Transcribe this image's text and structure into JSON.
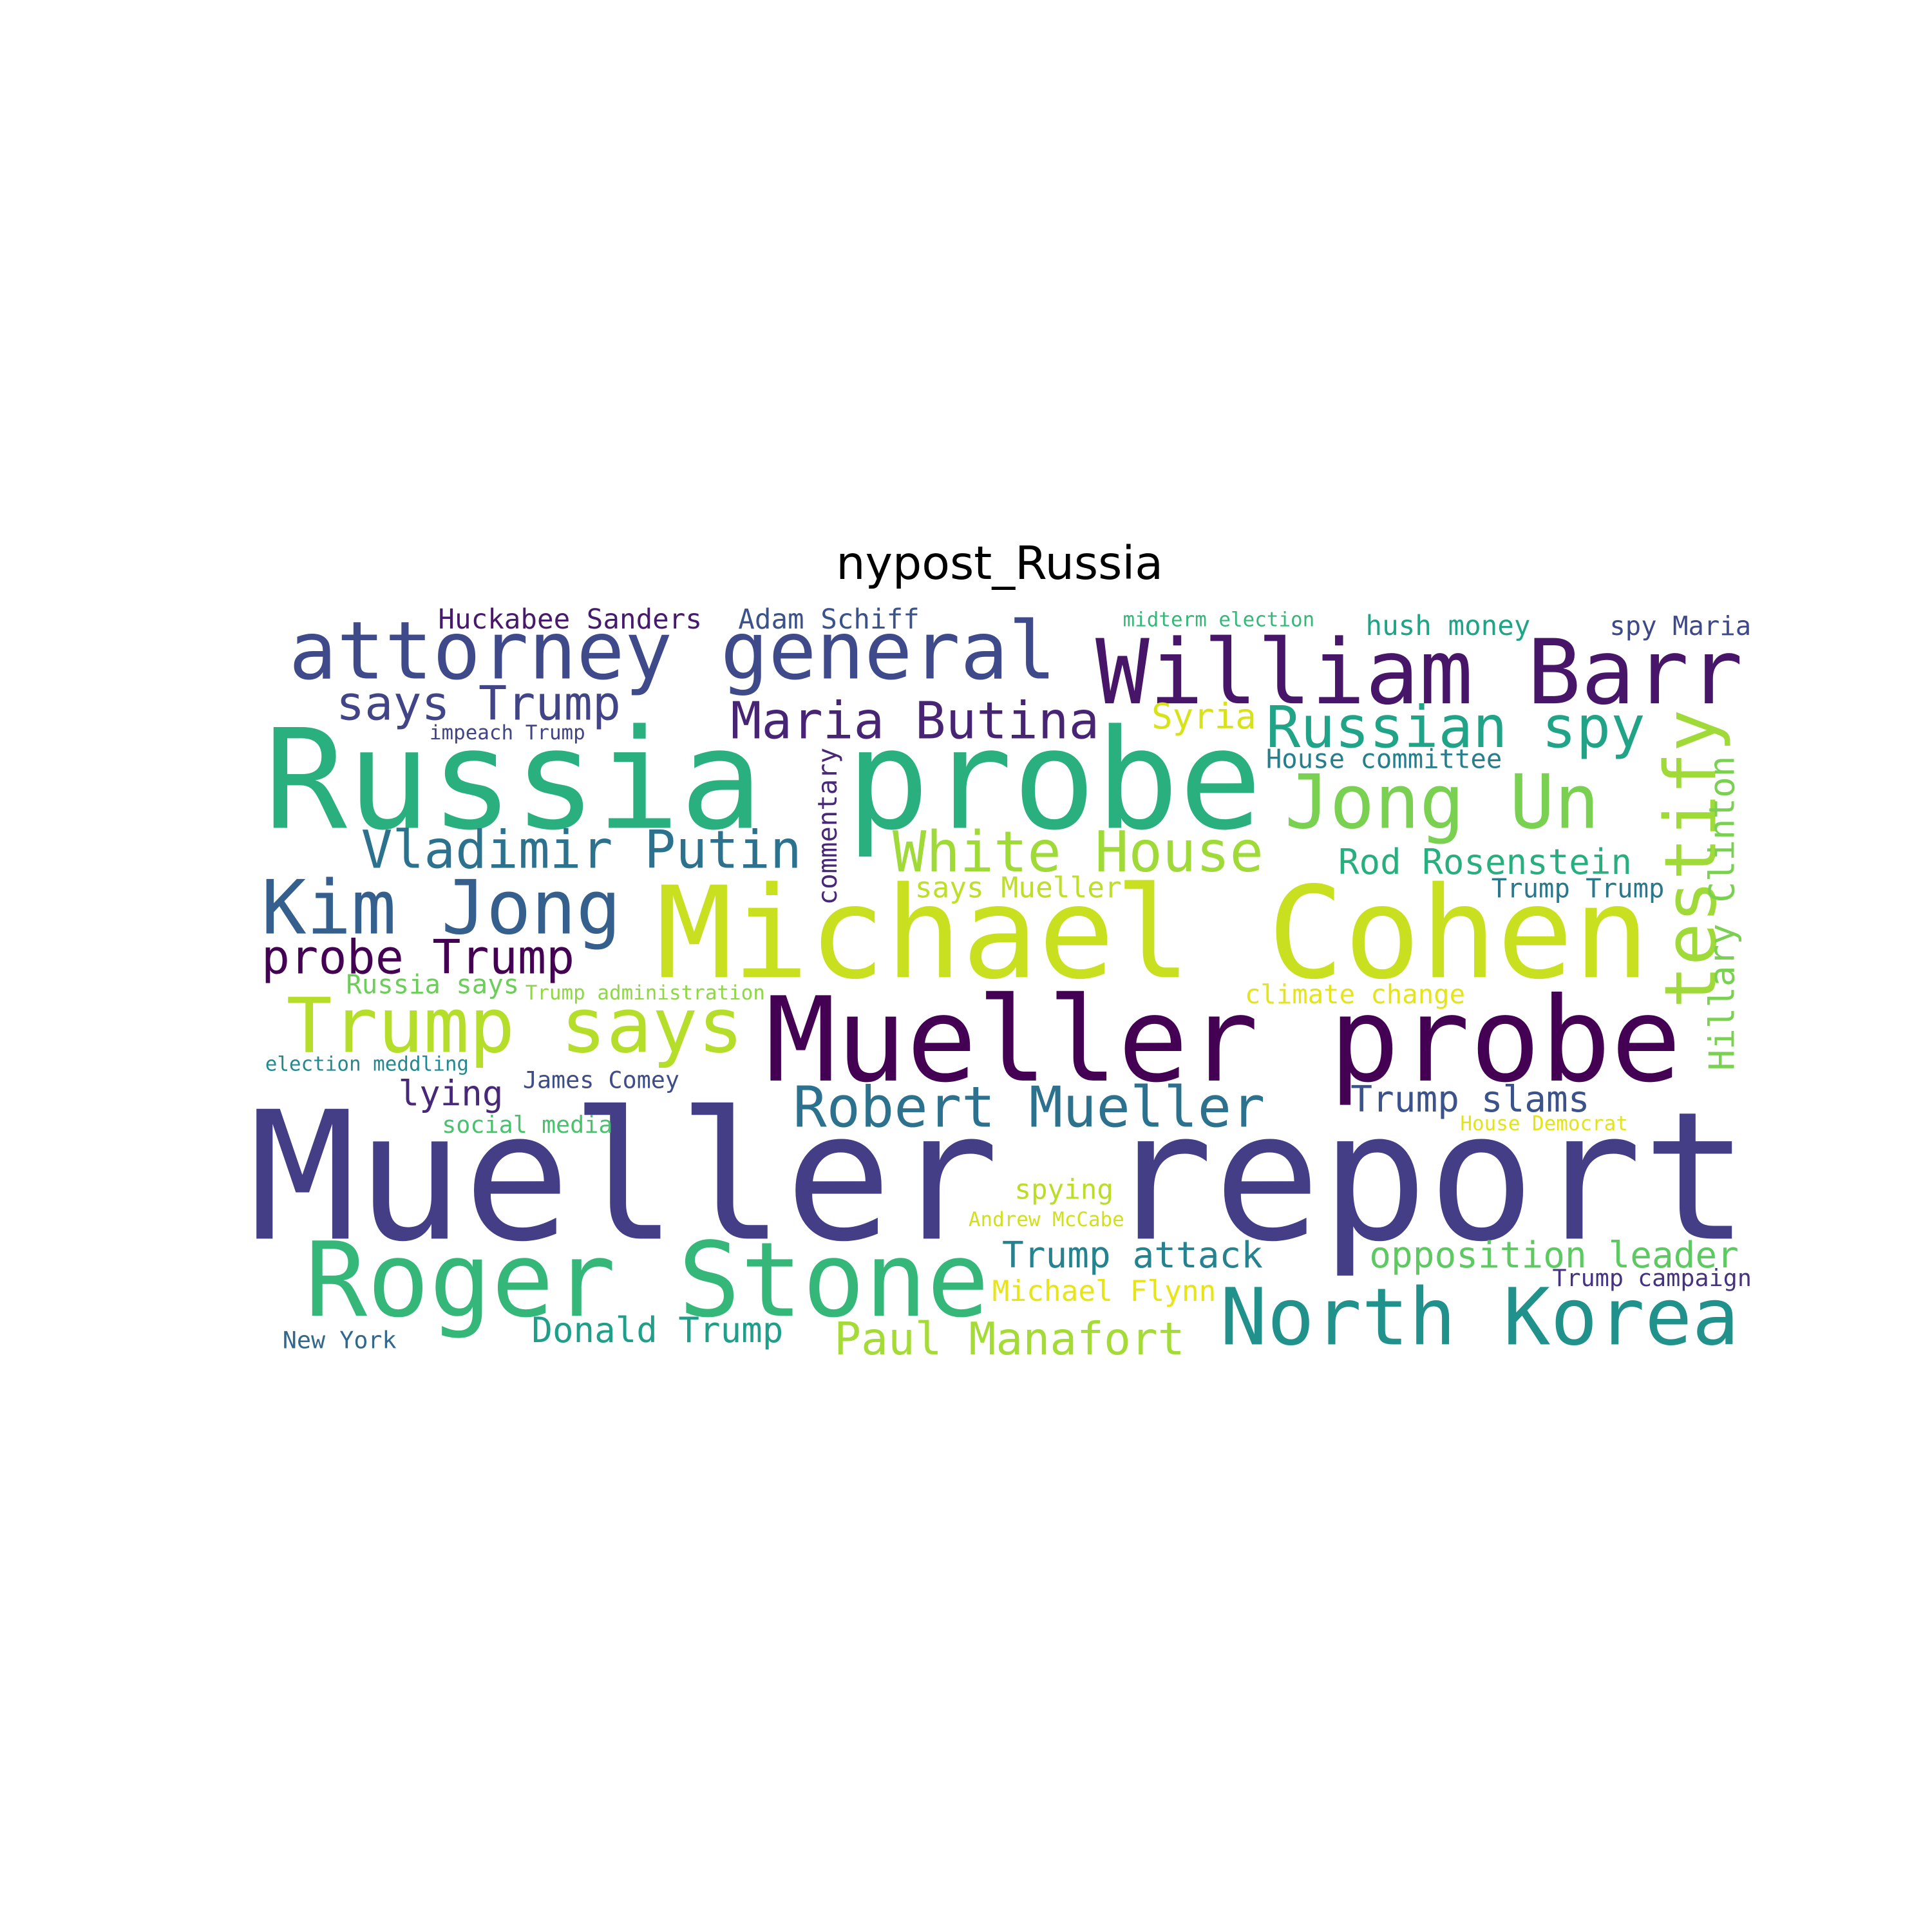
{
  "title": "nypost_Russia",
  "words": [
    "Mueller report",
    "Michael Cohen",
    "Russia probe",
    "Mueller probe",
    "William Barr",
    "attorney general",
    "Roger Stone",
    "North Korea",
    "Kim Jong",
    "Trump says",
    "Jong Un",
    "testify",
    "Hillary Clinton",
    "commentary",
    "Vladimir Putin",
    "White House",
    "Russian spy",
    "Maria Butina",
    "says Trump",
    "probe Trump",
    "Robert Mueller",
    "Paul Manafort",
    "Trump attack",
    "opposition leader",
    "Donald Trump",
    "Rod Rosenstein",
    "Trump slams",
    "lying",
    "Syria",
    "hush money",
    "spy Maria",
    "Huckabee Sanders",
    "Adam Schiff",
    "midterm election",
    "House committee",
    "impeach Trump",
    "says Mueller",
    "Trump Trump",
    "Russia says",
    "Trump administration",
    "climate change",
    "election meddling",
    "James Comey",
    "social media",
    "House Democrat",
    "spying",
    "Andrew McCabe",
    "Michael Flynn",
    "Trump campaign",
    "New York"
  ]
}
